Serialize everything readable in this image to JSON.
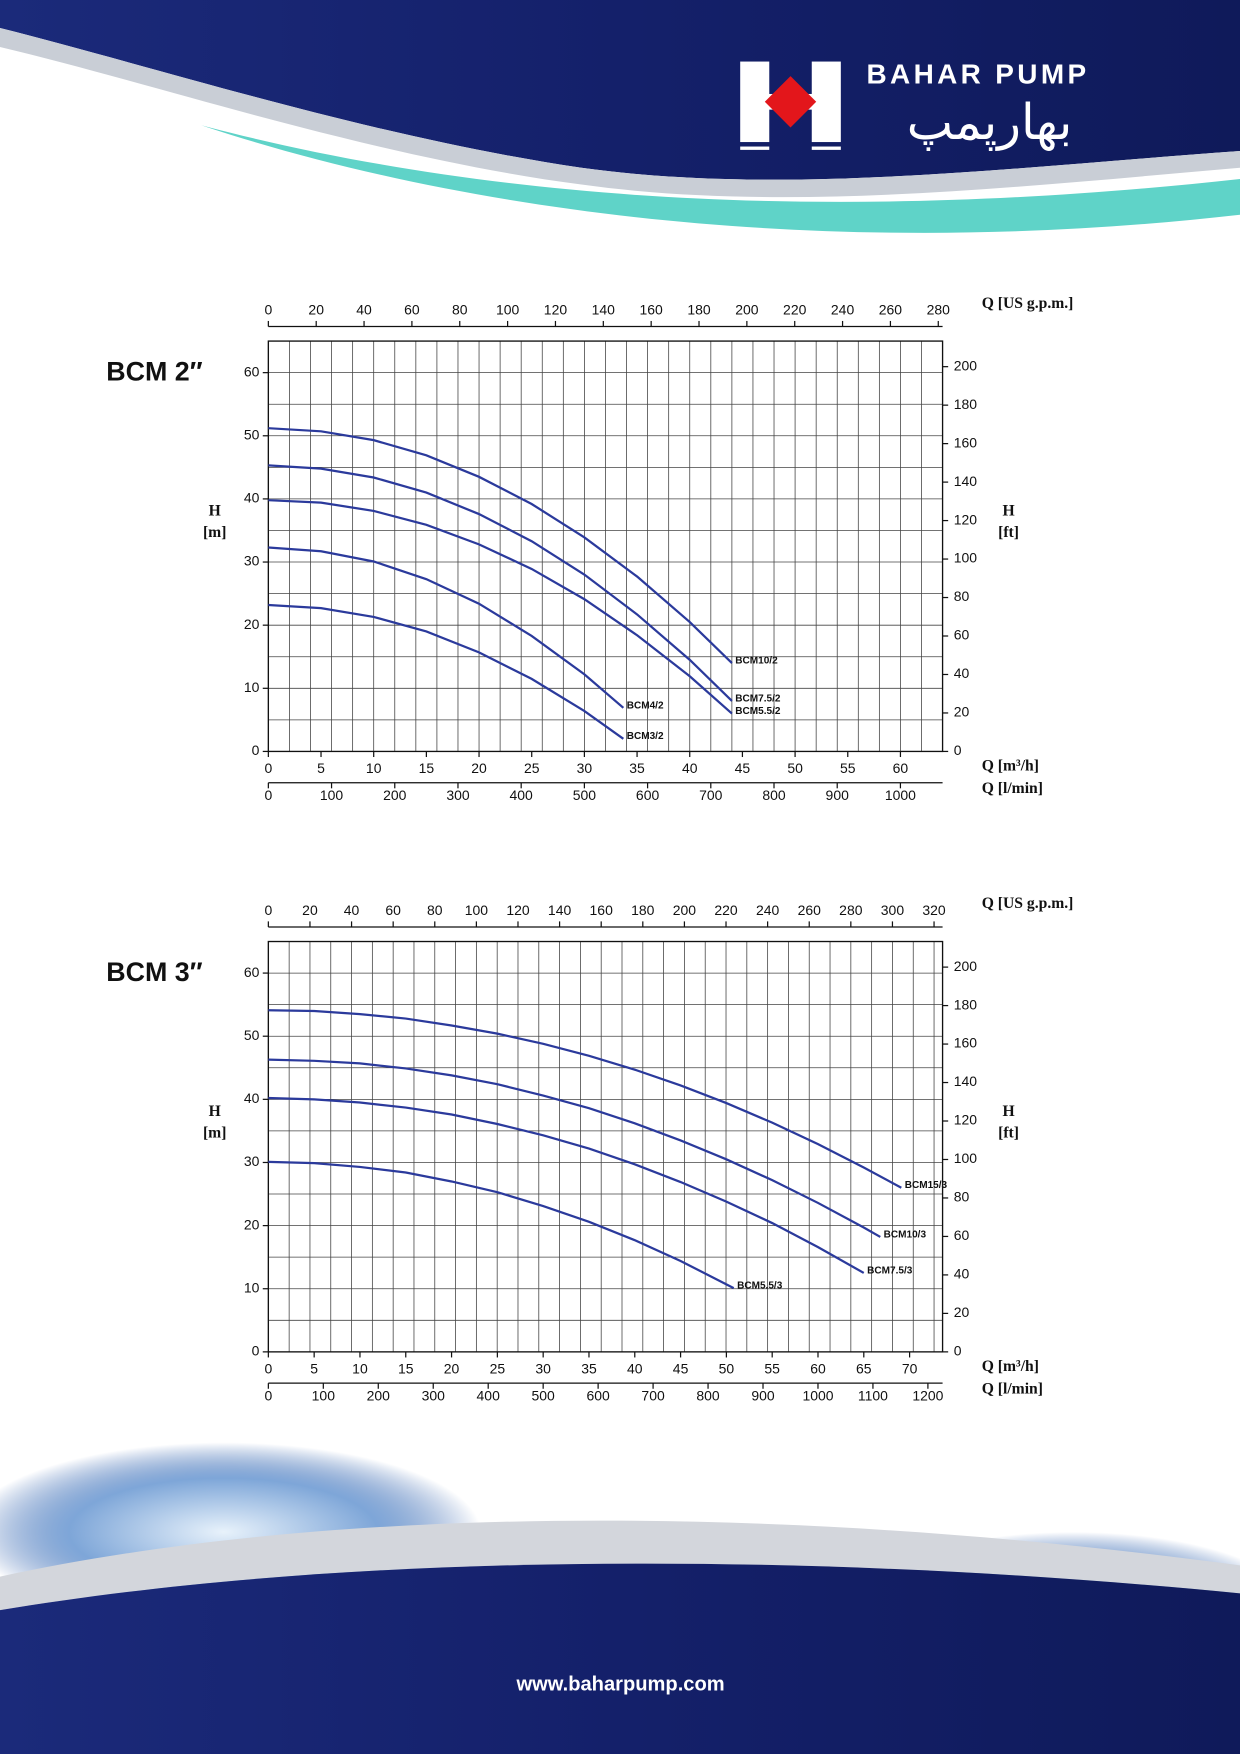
{
  "header": {
    "brand": "BAHAR PUMP",
    "brand_fa": "بهارپمپ"
  },
  "footer": {
    "url": "www.baharpump.com"
  },
  "chart_data": [
    {
      "type": "line",
      "title": "BCM 2″",
      "xlabel": "Q [m³/h]",
      "xlim": [
        0,
        64
      ],
      "xticks": [
        0,
        5,
        10,
        15,
        20,
        25,
        30,
        35,
        40,
        45,
        50,
        55,
        60
      ],
      "xgrid": [
        0,
        2,
        4,
        6,
        8,
        10,
        12,
        14,
        16,
        18,
        20,
        22,
        24,
        26,
        28,
        30,
        32,
        34,
        36,
        38,
        40,
        42,
        44,
        46,
        48,
        50,
        52,
        54,
        56,
        58,
        60,
        62,
        64
      ],
      "x2label": "Q [US g.p.m.]",
      "x2lim": [
        0,
        281.8
      ],
      "x2ticks": [
        0,
        20,
        40,
        60,
        80,
        100,
        120,
        140,
        160,
        180,
        200,
        220,
        240,
        260,
        280
      ],
      "x3label": "Q [l/min]",
      "x3lim": [
        0,
        1066.7
      ],
      "x3ticks": [
        0,
        100,
        200,
        300,
        400,
        500,
        600,
        700,
        800,
        900,
        1000
      ],
      "ylabel": {
        "symbol": "H",
        "unit": "[m]"
      },
      "ylim": [
        0,
        65
      ],
      "yticks": [
        0,
        10,
        20,
        30,
        40,
        50,
        60
      ],
      "ygrid": [
        0,
        5,
        10,
        15,
        20,
        25,
        30,
        35,
        40,
        45,
        50,
        55,
        60,
        65
      ],
      "y2label": {
        "symbol": "H",
        "unit": "[ft]"
      },
      "y2lim": [
        0,
        213.3
      ],
      "y2ticks": [
        0,
        20,
        40,
        60,
        80,
        100,
        120,
        140,
        160,
        180,
        200
      ],
      "series": [
        {
          "name": "BCM10/2",
          "color": "#2b3a9c",
          "x": [
            0,
            5,
            10,
            15,
            20,
            25,
            30,
            35,
            40,
            44
          ],
          "values": [
            51.2,
            50.7,
            49.3,
            46.9,
            43.5,
            39.2,
            33.9,
            27.7,
            20.5,
            14.0
          ]
        },
        {
          "name": "BCM7.5/2",
          "color": "#2b3a9c",
          "x": [
            0,
            5,
            10,
            15,
            20,
            25,
            30,
            35,
            40,
            44
          ],
          "values": [
            45.3,
            44.8,
            43.4,
            41.0,
            37.6,
            33.3,
            28.0,
            21.7,
            14.5,
            8.0
          ]
        },
        {
          "name": "BCM5.5/2",
          "color": "#2b3a9c",
          "x": [
            0,
            5,
            10,
            15,
            20,
            25,
            30,
            35,
            40,
            44
          ],
          "values": [
            39.8,
            39.4,
            38.1,
            35.9,
            32.8,
            28.9,
            24.1,
            18.4,
            11.9,
            6.0
          ]
        },
        {
          "name": "BCM4/2",
          "color": "#2b3a9c",
          "x": [
            0,
            5,
            10,
            15,
            20,
            25,
            30,
            33.7
          ],
          "values": [
            32.3,
            31.7,
            30.1,
            27.3,
            23.4,
            18.3,
            12.2,
            6.9
          ]
        },
        {
          "name": "BCM3/2",
          "color": "#2b3a9c",
          "x": [
            0,
            5,
            10,
            15,
            20,
            25,
            30,
            33.7
          ],
          "values": [
            23.2,
            22.7,
            21.3,
            19.0,
            15.7,
            11.5,
            6.4,
            2.0
          ]
        }
      ]
    },
    {
      "type": "line",
      "title": "BCM 3″",
      "xlabel": "Q [m³/h]",
      "xlim": [
        0,
        73.6
      ],
      "xticks": [
        0,
        5,
        10,
        15,
        20,
        25,
        30,
        35,
        40,
        45,
        50,
        55,
        60,
        65,
        70
      ],
      "x2label": "Q [US g.p.m.]",
      "x2lim": [
        0,
        324.1
      ],
      "x2ticks": [
        0,
        20,
        40,
        60,
        80,
        100,
        120,
        140,
        160,
        180,
        200,
        220,
        240,
        260,
        280,
        300,
        320
      ],
      "x2grid": [
        0,
        10,
        20,
        30,
        40,
        50,
        60,
        70,
        80,
        90,
        100,
        110,
        120,
        130,
        140,
        150,
        160,
        170,
        180,
        190,
        200,
        210,
        220,
        230,
        240,
        250,
        260,
        270,
        280,
        290,
        300,
        310,
        320
      ],
      "x3label": "Q [l/min]",
      "x3lim": [
        0,
        1226.7
      ],
      "x3ticks": [
        0,
        100,
        200,
        300,
        400,
        500,
        600,
        700,
        800,
        900,
        1000,
        1100,
        1200
      ],
      "ylabel": {
        "symbol": "H",
        "unit": "[m]"
      },
      "ylim": [
        0,
        65
      ],
      "yticks": [
        0,
        10,
        20,
        30,
        40,
        50,
        60
      ],
      "ygrid": [
        0,
        5,
        10,
        15,
        20,
        25,
        30,
        35,
        40,
        45,
        50,
        55,
        60,
        65
      ],
      "y2label": {
        "symbol": "H",
        "unit": "[ft]"
      },
      "y2lim": [
        0,
        213.3
      ],
      "y2ticks": [
        0,
        20,
        40,
        60,
        80,
        100,
        120,
        140,
        160,
        180,
        200
      ],
      "series": [
        {
          "name": "BCM15/3",
          "color": "#2b3a9c",
          "x": [
            0,
            5,
            10,
            15,
            20,
            25,
            30,
            35,
            40,
            45,
            50,
            55,
            60,
            65,
            69.1
          ],
          "values": [
            54.1,
            54.0,
            53.5,
            52.8,
            51.7,
            50.4,
            48.8,
            46.9,
            44.7,
            42.2,
            39.4,
            36.3,
            32.9,
            29.2,
            26.0
          ]
        },
        {
          "name": "BCM10/3",
          "color": "#2b3a9c",
          "x": [
            0,
            5,
            10,
            15,
            20,
            25,
            30,
            35,
            40,
            45,
            50,
            55,
            60,
            65,
            66.8
          ],
          "values": [
            46.3,
            46.1,
            45.7,
            44.9,
            43.8,
            42.4,
            40.6,
            38.6,
            36.2,
            33.5,
            30.5,
            27.2,
            23.6,
            19.7,
            18.2
          ]
        },
        {
          "name": "BCM7.5/3",
          "color": "#2b3a9c",
          "x": [
            0,
            5,
            10,
            15,
            20,
            25,
            30,
            35,
            40,
            45,
            50,
            55,
            60,
            65
          ],
          "values": [
            40.2,
            40.0,
            39.5,
            38.7,
            37.6,
            36.1,
            34.3,
            32.2,
            29.7,
            26.9,
            23.8,
            20.4,
            16.6,
            12.5
          ]
        },
        {
          "name": "BCM5.5/3",
          "color": "#2b3a9c",
          "x": [
            0,
            5,
            10,
            15,
            20,
            25,
            30,
            35,
            40,
            45,
            50.8
          ],
          "values": [
            30.1,
            29.9,
            29.3,
            28.4,
            27.0,
            25.3,
            23.1,
            20.6,
            17.7,
            14.4,
            10.1
          ]
        }
      ]
    }
  ]
}
